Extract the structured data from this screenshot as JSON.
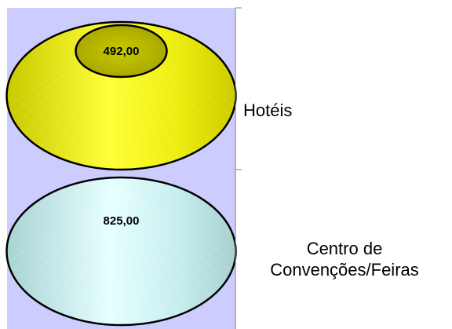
{
  "chart_data": {
    "type": "bar",
    "style": "stacked cone (3D), horizontal",
    "categories": [
      "Hotéis",
      "Centro de Convenções/Feiras"
    ],
    "values": [
      492.0,
      825.0
    ],
    "value_labels": [
      "492,00",
      "825,00"
    ],
    "category_label_lines": [
      [
        "Hotéis"
      ],
      [
        "Centro de",
        "Convenções/Feiras"
      ]
    ],
    "title": "",
    "xlabel": "",
    "ylabel": "",
    "legend": "none",
    "grid": false,
    "colors": {
      "plot_background": "#ccccff",
      "Hotéis": "#e6e600",
      "Centro de Convenções/Feiras": "#ccffff",
      "outline": "#000000",
      "axis": "#808080"
    }
  }
}
